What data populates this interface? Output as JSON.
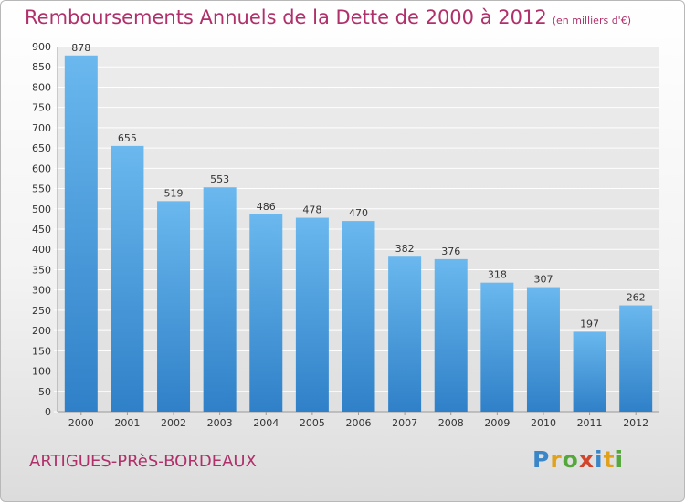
{
  "header": {
    "title": "Remboursements Annuels de la Dette de 2000 à 2012",
    "unit": "(en milliers d'€)"
  },
  "footer": {
    "city": "ARTIGUES-PRèS-BORDEAUX",
    "logo_letters": [
      "P",
      "r",
      "o",
      "x",
      "i",
      "t",
      "i"
    ],
    "logo_colors": [
      "#3a86c8",
      "#e0a21c",
      "#54a83b",
      "#d1452b",
      "#3a86c8",
      "#e0a21c",
      "#54a83b"
    ]
  },
  "colors": {
    "bar": "#3f9ae0",
    "bar_light": "#6ab8ee",
    "title": "#b0306a"
  },
  "chart_data": {
    "type": "bar",
    "title": "Remboursements Annuels de la Dette de 2000 à 2012",
    "categories": [
      "2000",
      "2001",
      "2002",
      "2003",
      "2004",
      "2005",
      "2006",
      "2007",
      "2008",
      "2009",
      "2010",
      "2011",
      "2012"
    ],
    "values": [
      878,
      655,
      519,
      553,
      486,
      478,
      470,
      382,
      376,
      318,
      307,
      197,
      262
    ],
    "ylim": [
      0,
      900
    ],
    "ytick_step": 50,
    "grid": true
  }
}
